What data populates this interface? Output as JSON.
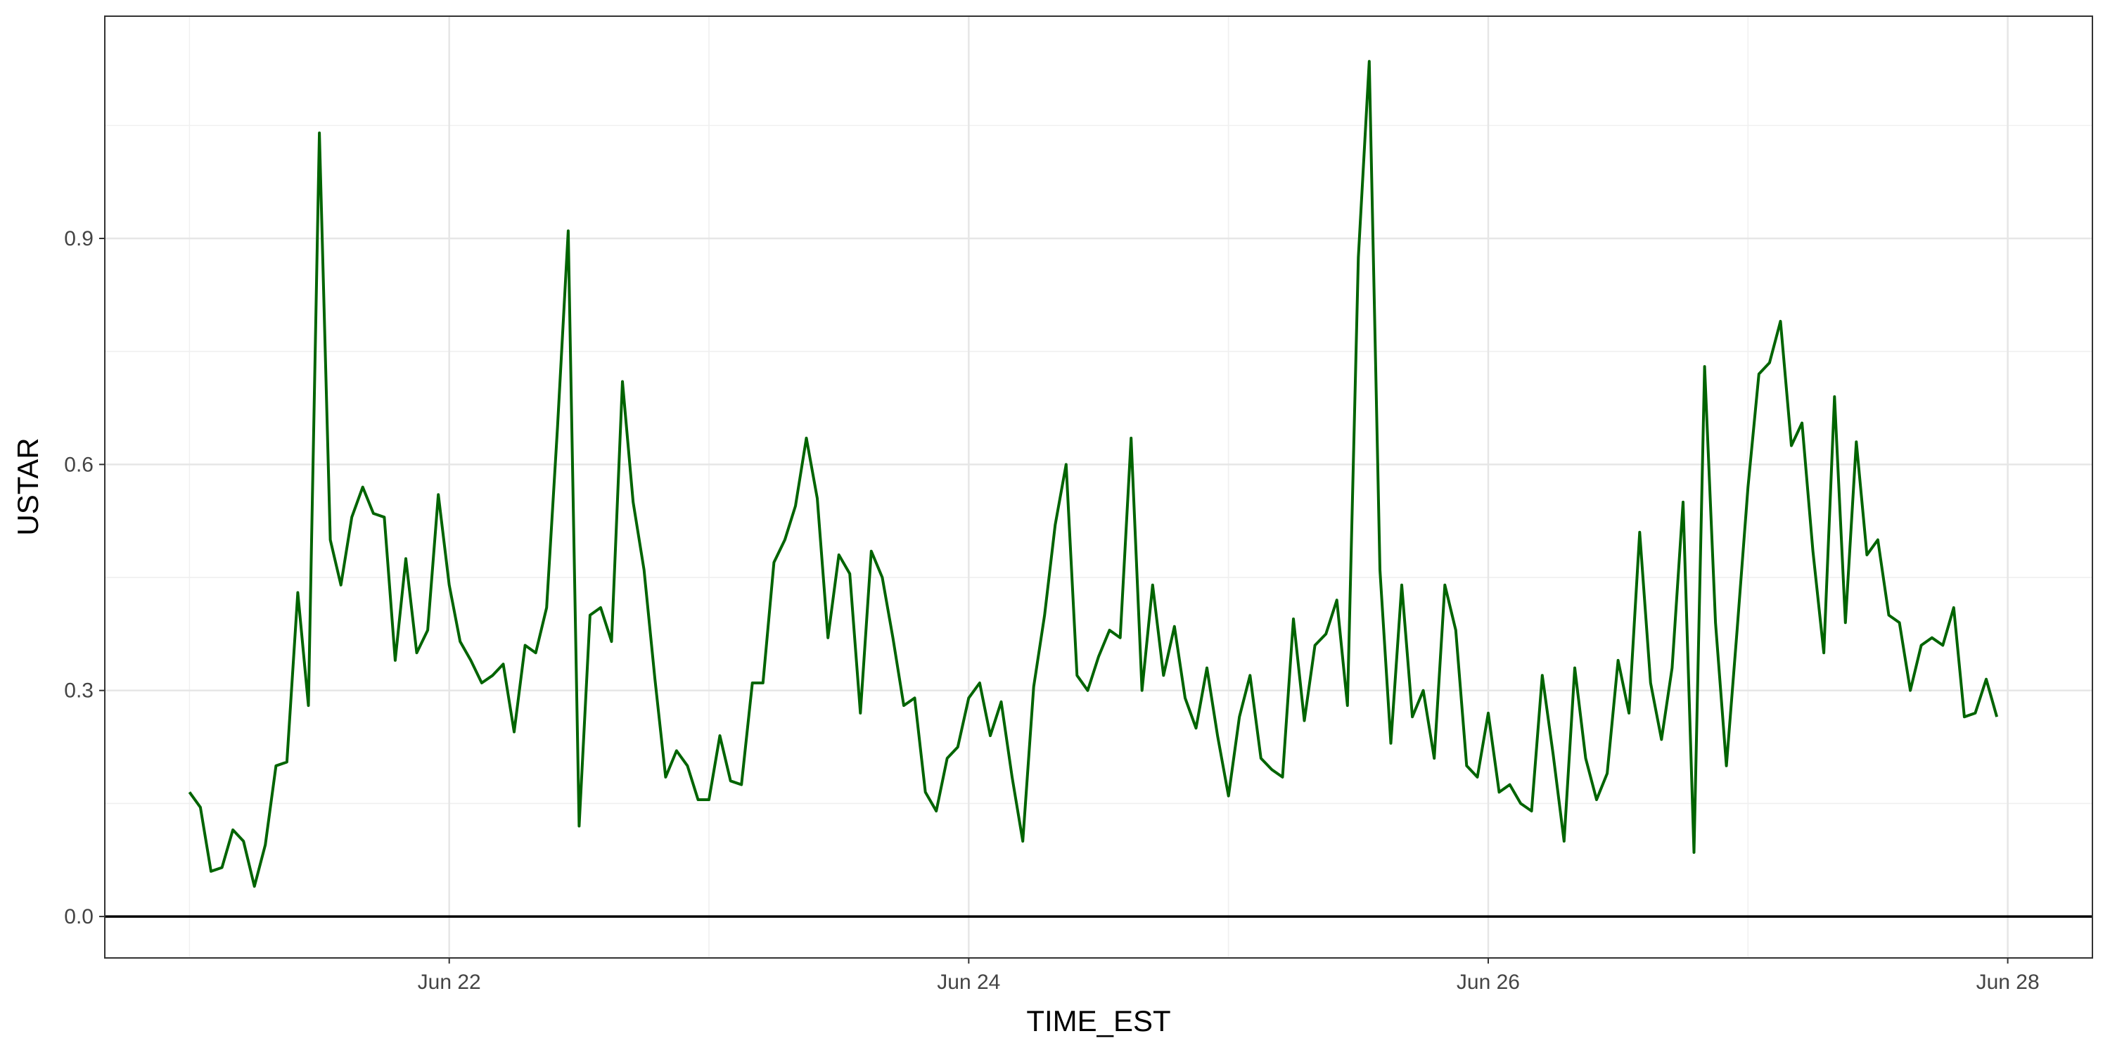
{
  "chart_data": {
    "type": "line",
    "x_label": "TIME_EST",
    "y_label": "USTAR",
    "x": [
      21,
      21.042,
      21.083,
      21.125,
      21.167,
      21.208,
      21.25,
      21.292,
      21.333,
      21.375,
      21.417,
      21.458,
      21.5,
      21.542,
      21.583,
      21.625,
      21.667,
      21.708,
      21.75,
      21.792,
      21.833,
      21.875,
      21.917,
      21.958,
      22,
      22.042,
      22.083,
      22.125,
      22.167,
      22.208,
      22.25,
      22.292,
      22.333,
      22.375,
      22.417,
      22.458,
      22.5,
      22.542,
      22.583,
      22.625,
      22.667,
      22.708,
      22.75,
      22.792,
      22.833,
      22.875,
      22.917,
      22.958,
      23,
      23.042,
      23.083,
      23.125,
      23.167,
      23.208,
      23.25,
      23.292,
      23.333,
      23.375,
      23.417,
      23.458,
      23.5,
      23.542,
      23.583,
      23.625,
      23.667,
      23.708,
      23.75,
      23.792,
      23.833,
      23.875,
      23.917,
      23.958,
      24,
      24.042,
      24.083,
      24.125,
      24.167,
      24.208,
      24.25,
      24.292,
      24.333,
      24.375,
      24.417,
      24.458,
      24.5,
      24.542,
      24.583,
      24.625,
      24.667,
      24.708,
      24.75,
      24.792,
      24.833,
      24.875,
      24.917,
      24.958,
      25,
      25.042,
      25.083,
      25.125,
      25.167,
      25.208,
      25.25,
      25.292,
      25.333,
      25.375,
      25.417,
      25.458,
      25.5,
      25.542,
      25.583,
      25.625,
      25.667,
      25.708,
      25.75,
      25.792,
      25.833,
      25.875,
      25.917,
      25.958,
      26,
      26.042,
      26.083,
      26.125,
      26.167,
      26.208,
      26.25,
      26.292,
      26.333,
      26.375,
      26.417,
      26.458,
      26.5,
      26.542,
      26.583,
      26.625,
      26.667,
      26.708,
      26.75,
      26.792,
      26.833,
      26.875,
      26.917,
      26.958,
      27,
      27.042,
      27.083,
      27.125,
      27.167,
      27.208,
      27.25,
      27.292,
      27.333,
      27.375,
      27.417,
      27.458,
      27.5,
      27.542,
      27.583,
      27.625,
      27.667,
      27.708,
      27.75,
      27.792,
      27.833,
      27.875,
      27.917,
      27.958
    ],
    "series": [
      {
        "color": "#006400",
        "values": [
          0.165,
          0.145,
          0.06,
          0.065,
          0.115,
          0.1,
          0.04,
          0.095,
          0.2,
          0.205,
          0.43,
          0.28,
          1.04,
          0.5,
          0.44,
          0.53,
          0.57,
          0.535,
          0.53,
          0.34,
          0.475,
          0.35,
          0.38,
          0.56,
          0.44,
          0.365,
          0.34,
          0.31,
          0.32,
          0.335,
          0.245,
          0.36,
          0.35,
          0.41,
          0.65,
          0.91,
          0.12,
          0.4,
          0.41,
          0.365,
          0.71,
          0.55,
          0.46,
          0.315,
          0.185,
          0.22,
          0.2,
          0.155,
          0.155,
          0.24,
          0.18,
          0.175,
          0.31,
          0.31,
          0.47,
          0.5,
          0.545,
          0.635,
          0.555,
          0.37,
          0.48,
          0.455,
          0.27,
          0.485,
          0.45,
          0.37,
          0.28,
          0.29,
          0.165,
          0.14,
          0.21,
          0.225,
          0.29,
          0.31,
          0.24,
          0.285,
          0.185,
          0.1,
          0.305,
          0.4,
          0.52,
          0.6,
          0.32,
          0.3,
          0.345,
          0.38,
          0.37,
          0.635,
          0.3,
          0.44,
          0.32,
          0.385,
          0.29,
          0.25,
          0.33,
          0.24,
          0.16,
          0.265,
          0.32,
          0.21,
          0.195,
          0.185,
          0.395,
          0.26,
          0.36,
          0.375,
          0.42,
          0.28,
          0.875,
          1.135,
          0.46,
          0.23,
          0.44,
          0.265,
          0.3,
          0.21,
          0.44,
          0.38,
          0.2,
          0.185,
          0.27,
          0.165,
          0.175,
          0.15,
          0.14,
          0.32,
          0.215,
          0.1,
          0.33,
          0.21,
          0.155,
          0.19,
          0.34,
          0.27,
          0.51,
          0.31,
          0.235,
          0.33,
          0.55,
          0.085,
          0.73,
          0.39,
          0.2,
          0.38,
          0.57,
          0.72,
          0.735,
          0.79,
          0.625,
          0.655,
          0.485,
          0.35,
          0.69,
          0.39,
          0.63,
          0.48,
          0.5,
          0.4,
          0.39,
          0.3,
          0.36,
          0.37,
          0.36,
          0.41,
          0.265,
          0.27,
          0.315,
          0.265
        ]
      }
    ],
    "xlim": [
      20.674,
      28.326
    ],
    "xticks": [
      {
        "value": 22,
        "label": "Jun 22"
      },
      {
        "value": 24,
        "label": "Jun 24"
      },
      {
        "value": 26,
        "label": "Jun 26"
      },
      {
        "value": 28,
        "label": "Jun 28"
      }
    ],
    "ylim": [
      -0.055,
      1.195
    ],
    "yticks": [
      {
        "value": 0,
        "label": "0.0"
      },
      {
        "value": 0.3,
        "label": "0.3"
      },
      {
        "value": 0.6,
        "label": "0.6"
      },
      {
        "value": 0.9,
        "label": "0.9"
      }
    ],
    "grid": true,
    "hline": 0
  }
}
